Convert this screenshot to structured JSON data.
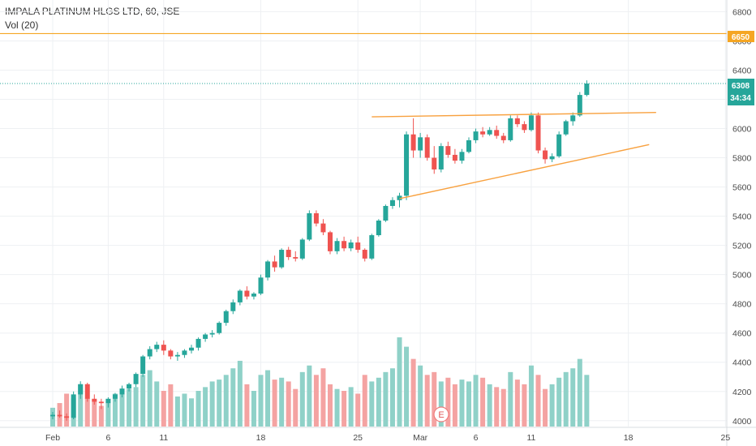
{
  "legend": {
    "title": "IMPALA PLATINUM HLGS LTD, 60, JSE",
    "volume": "Vol (20)"
  },
  "badges": {
    "level_6650": "6650",
    "last_price": "6308",
    "countdown": "34:34"
  },
  "event_marker": "E",
  "colors": {
    "up": "#26a69a",
    "down": "#ef5350",
    "vol_up": "#8fd1c8",
    "vol_down": "#f4a3a2",
    "trendline": "#f8a13f",
    "horizontal_level": "#f5a623",
    "last_price_line": "#26a69a",
    "grid": "#eef0f3"
  },
  "chart_data": {
    "type": "candlestick",
    "y_ticks": [
      4000,
      4200,
      4400,
      4600,
      4800,
      5000,
      5200,
      5400,
      5600,
      5800,
      6000,
      6200,
      6400,
      6600,
      6800
    ],
    "ylim": [
      3960,
      6880
    ],
    "x_tick_labels": [
      {
        "label": "Feb",
        "bar": 0
      },
      {
        "label": "6",
        "bar": 8
      },
      {
        "label": "11",
        "bar": 16
      },
      {
        "label": "18",
        "bar": 30
      },
      {
        "label": "25",
        "bar": 44
      },
      {
        "label": "Mar",
        "bar": 53
      },
      {
        "label": "6",
        "bar": 61
      },
      {
        "label": "11",
        "bar": 69
      },
      {
        "label": "18",
        "bar": 83
      },
      {
        "label": "25",
        "bar": 97
      }
    ],
    "horizontal_level": 6650,
    "last_price": 6308,
    "trendlines": [
      {
        "from": {
          "bar": 46,
          "price": 6080
        },
        "to": {
          "bar": 87,
          "price": 6110
        }
      },
      {
        "from": {
          "bar": 50,
          "price": 5520
        },
        "to": {
          "bar": 86,
          "price": 5890
        }
      }
    ],
    "ohlc": [
      [
        4030,
        4060,
        4010,
        4040
      ],
      [
        4040,
        4070,
        4020,
        4030
      ],
      [
        4030,
        4050,
        4000,
        4020
      ],
      [
        4020,
        4200,
        4010,
        4180
      ],
      [
        4180,
        4270,
        4150,
        4250
      ],
      [
        4250,
        4260,
        4130,
        4150
      ],
      [
        4150,
        4180,
        4110,
        4130
      ],
      [
        4130,
        4150,
        4080,
        4120
      ],
      [
        4120,
        4160,
        4090,
        4150
      ],
      [
        4150,
        4190,
        4130,
        4180
      ],
      [
        4180,
        4240,
        4160,
        4220
      ],
      [
        4220,
        4260,
        4200,
        4250
      ],
      [
        4250,
        4330,
        4230,
        4320
      ],
      [
        4320,
        4450,
        4300,
        4440
      ],
      [
        4440,
        4510,
        4420,
        4490
      ],
      [
        4490,
        4540,
        4470,
        4520
      ],
      [
        4520,
        4550,
        4450,
        4480
      ],
      [
        4480,
        4490,
        4420,
        4440
      ],
      [
        4440,
        4470,
        4410,
        4450
      ],
      [
        4450,
        4490,
        4430,
        4480
      ],
      [
        4480,
        4520,
        4460,
        4500
      ],
      [
        4500,
        4570,
        4480,
        4560
      ],
      [
        4560,
        4600,
        4540,
        4590
      ],
      [
        4590,
        4620,
        4570,
        4600
      ],
      [
        4600,
        4680,
        4590,
        4670
      ],
      [
        4670,
        4760,
        4650,
        4750
      ],
      [
        4750,
        4830,
        4730,
        4810
      ],
      [
        4810,
        4900,
        4790,
        4890
      ],
      [
        4890,
        4920,
        4830,
        4850
      ],
      [
        4850,
        4880,
        4830,
        4870
      ],
      [
        4870,
        5000,
        4860,
        4980
      ],
      [
        4980,
        5100,
        4960,
        5090
      ],
      [
        5090,
        5130,
        5020,
        5050
      ],
      [
        5050,
        5180,
        5040,
        5170
      ],
      [
        5170,
        5190,
        5100,
        5120
      ],
      [
        5120,
        5160,
        5090,
        5110
      ],
      [
        5110,
        5250,
        5100,
        5240
      ],
      [
        5240,
        5440,
        5230,
        5420
      ],
      [
        5420,
        5440,
        5330,
        5350
      ],
      [
        5350,
        5380,
        5270,
        5290
      ],
      [
        5290,
        5300,
        5140,
        5160
      ],
      [
        5160,
        5250,
        5140,
        5230
      ],
      [
        5230,
        5260,
        5160,
        5180
      ],
      [
        5180,
        5240,
        5160,
        5220
      ],
      [
        5220,
        5260,
        5150,
        5170
      ],
      [
        5170,
        5180,
        5090,
        5110
      ],
      [
        5110,
        5280,
        5100,
        5270
      ],
      [
        5270,
        5380,
        5260,
        5370
      ],
      [
        5370,
        5480,
        5360,
        5470
      ],
      [
        5470,
        5530,
        5450,
        5510
      ],
      [
        5510,
        5560,
        5460,
        5540
      ],
      [
        5540,
        5980,
        5510,
        5960
      ],
      [
        5960,
        6070,
        5800,
        5850
      ],
      [
        5850,
        5970,
        5800,
        5940
      ],
      [
        5940,
        5960,
        5780,
        5800
      ],
      [
        5800,
        5880,
        5690,
        5720
      ],
      [
        5720,
        5900,
        5700,
        5880
      ],
      [
        5880,
        5910,
        5800,
        5820
      ],
      [
        5820,
        5860,
        5760,
        5780
      ],
      [
        5780,
        5860,
        5760,
        5840
      ],
      [
        5840,
        5940,
        5830,
        5920
      ],
      [
        5920,
        6000,
        5900,
        5980
      ],
      [
        5980,
        6010,
        5940,
        5960
      ],
      [
        5960,
        6010,
        5950,
        5990
      ],
      [
        5990,
        6020,
        5930,
        5950
      ],
      [
        5950,
        5970,
        5900,
        5920
      ],
      [
        5920,
        6090,
        5910,
        6070
      ],
      [
        6070,
        6090,
        6010,
        6030
      ],
      [
        6030,
        6050,
        5970,
        5990
      ],
      [
        5990,
        6110,
        5980,
        6090
      ],
      [
        6090,
        6110,
        5830,
        5850
      ],
      [
        5850,
        5870,
        5760,
        5790
      ],
      [
        5790,
        5830,
        5770,
        5810
      ],
      [
        5810,
        5980,
        5800,
        5960
      ],
      [
        5960,
        6060,
        5950,
        6050
      ],
      [
        6050,
        6110,
        6020,
        6090
      ],
      [
        6090,
        6250,
        6080,
        6230
      ],
      [
        6230,
        6330,
        6220,
        6308
      ]
    ],
    "volume": [
      20,
      25,
      35,
      30,
      45,
      30,
      28,
      22,
      25,
      35,
      38,
      40,
      42,
      55,
      60,
      48,
      38,
      45,
      32,
      35,
      30,
      38,
      42,
      48,
      50,
      55,
      62,
      70,
      45,
      38,
      55,
      60,
      50,
      52,
      48,
      40,
      58,
      65,
      55,
      62,
      45,
      40,
      38,
      42,
      35,
      55,
      48,
      52,
      58,
      62,
      95,
      85,
      72,
      65,
      55,
      58,
      48,
      52,
      45,
      50,
      48,
      55,
      52,
      45,
      42,
      40,
      58,
      50,
      45,
      65,
      55,
      40,
      45,
      52,
      58,
      62,
      72,
      55
    ]
  }
}
